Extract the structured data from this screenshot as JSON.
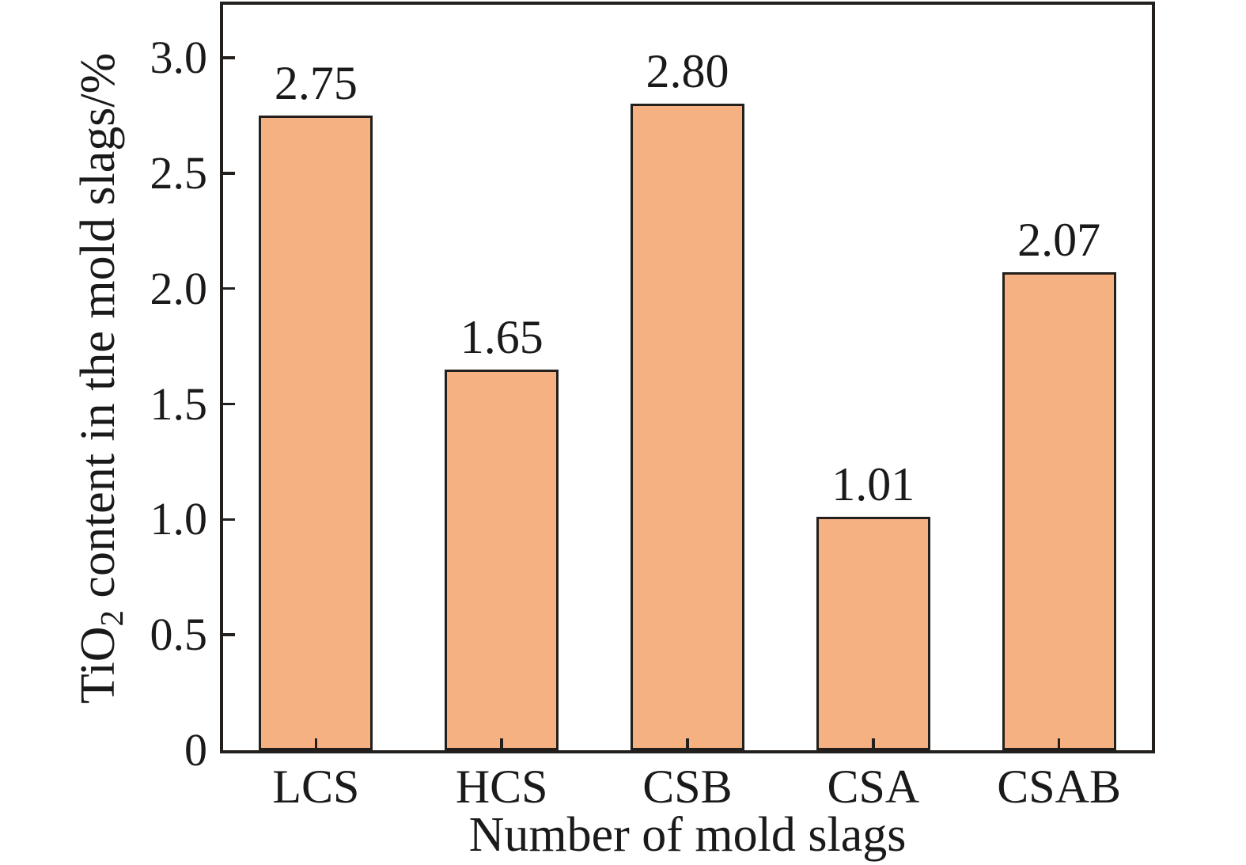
{
  "figure": {
    "background": "#ffffff",
    "text_color": "#1a1a1a",
    "frame_color": "#231f1c"
  },
  "chart_data": {
    "type": "bar",
    "categories": [
      "LCS",
      "HCS",
      "CSB",
      "CSA",
      "CSAB"
    ],
    "values": [
      2.75,
      1.65,
      2.8,
      1.01,
      2.07
    ],
    "value_labels": [
      "2.75",
      "1.65",
      "2.80",
      "1.01",
      "2.07"
    ],
    "title": "",
    "xlabel": "Number of mold slags",
    "ylabel": "TiO2 content in the mold slags/%",
    "ylabel_parts": {
      "prefix": "TiO",
      "subscript": "2",
      "suffix": " content in the mold slags/%"
    },
    "ylim": [
      0,
      3.23
    ],
    "yticks": [
      0,
      0.5,
      1.0,
      1.5,
      2.0,
      2.5,
      3.0
    ],
    "ytick_labels": [
      "0",
      "0.5",
      "1.0",
      "1.5",
      "2.0",
      "2.5",
      "3.0"
    ],
    "grid": false,
    "legend": null,
    "tick_direction": "in",
    "bar_color": "#f6b183",
    "bar_edge_color": "#231f1c"
  }
}
